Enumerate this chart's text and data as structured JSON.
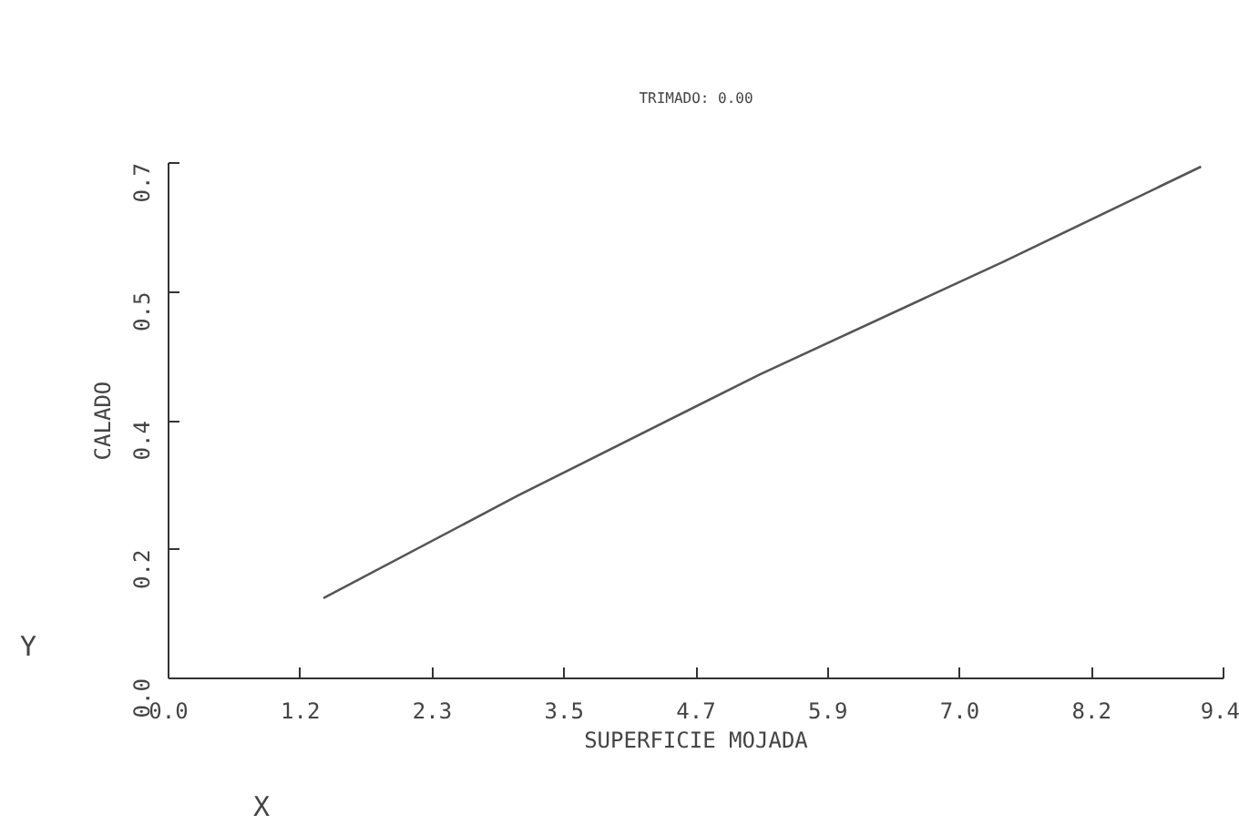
{
  "chart_data": {
    "type": "line",
    "title": "TRIMADO: 0.00",
    "xlabel": "SUPERFICIE MOJADA",
    "ylabel": "CALADO",
    "x": [
      1.38,
      3.11,
      5.27,
      7.44,
      9.2
    ],
    "series": [
      {
        "color": "#555555",
        "values": [
          0.109,
          0.248,
          0.413,
          0.566,
          0.695
        ]
      }
    ],
    "xlim": [
      0,
      9.4
    ],
    "ylim": [
      0,
      0.7
    ],
    "xticks": [
      {
        "value": 0,
        "label": "0.0"
      },
      {
        "value": 1.175,
        "label": "1.2"
      },
      {
        "value": 2.35,
        "label": "2.3"
      },
      {
        "value": 3.525,
        "label": "3.5"
      },
      {
        "value": 4.7,
        "label": "4.7"
      },
      {
        "value": 5.875,
        "label": "5.9"
      },
      {
        "value": 7.05,
        "label": "7.0"
      },
      {
        "value": 8.225,
        "label": "8.2"
      },
      {
        "value": 9.4,
        "label": "9.4"
      }
    ],
    "yticks": [
      {
        "value": 0,
        "label": "0.0"
      },
      {
        "value": 0.175,
        "label": "0.2"
      },
      {
        "value": 0.35,
        "label": "0.4"
      },
      {
        "value": 0.525,
        "label": "0.5"
      },
      {
        "value": 0.7,
        "label": "0.7"
      }
    ],
    "annotations": [
      "Y",
      "X"
    ]
  }
}
